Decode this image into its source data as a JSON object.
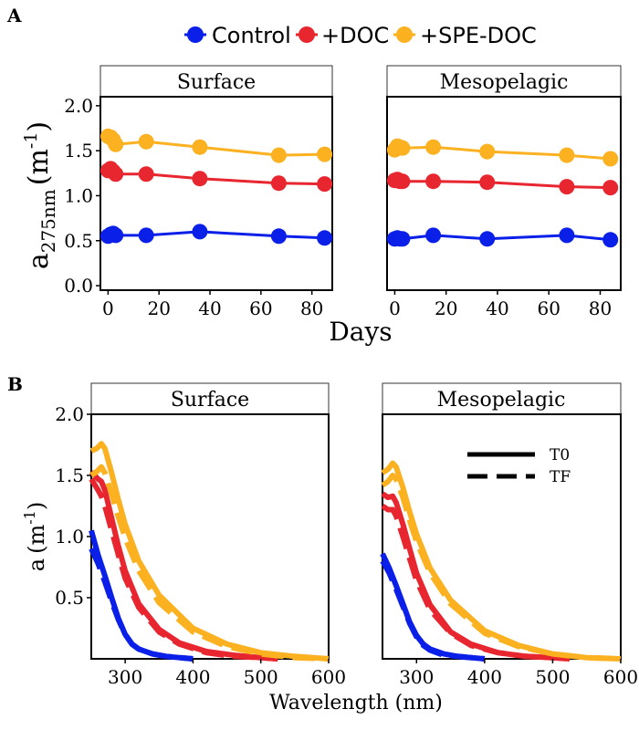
{
  "panel_labels": {
    "a": "A",
    "b": "B"
  },
  "legend": {
    "items": [
      {
        "label": "Control",
        "color": "#0a1fe8"
      },
      {
        "label": "+DOC",
        "color": "#e8262f"
      },
      {
        "label": "+SPE-DOC",
        "color": "#fbb120"
      }
    ]
  },
  "strip_labels": {
    "surface": "Surface",
    "mesopelagic": "Mesopelagic"
  },
  "axis_titles": {
    "a_ylabel_main": "a",
    "a_ylabel_sub": "275nm",
    "a_ylabel_unit_open": "(m",
    "a_ylabel_unit_sup": "-1",
    "a_ylabel_unit_close": ")",
    "a_xlabel": "Days",
    "b_ylabel_main": "a",
    "b_ylabel_unit_open": "(m",
    "b_ylabel_unit_sup": "-1",
    "b_ylabel_unit_close": ")",
    "b_xlabel": "Wavelength (nm)"
  },
  "line_legend": {
    "solid": "T0",
    "dashed": "TF"
  },
  "chart_data": [
    {
      "type": "line",
      "panel": "A",
      "xlabel": "Days",
      "ylabel": "a275nm (m-1)",
      "xlim": [
        -3,
        88
      ],
      "ylim": [
        -0.05,
        2.1
      ],
      "xticks": [
        0,
        20,
        40,
        60,
        80
      ],
      "yticks": [
        0.0,
        0.5,
        1.0,
        1.5,
        2.0
      ],
      "facets": [
        {
          "name": "Surface",
          "series": [
            {
              "name": "Control",
              "x": [
                0,
                1,
                2,
                3,
                15,
                36,
                67,
                85
              ],
              "y": [
                0.55,
                0.57,
                0.58,
                0.56,
                0.56,
                0.6,
                0.55,
                0.53
              ]
            },
            {
              "name": "+DOC",
              "x": [
                0,
                1,
                2,
                3,
                15,
                36,
                67,
                85
              ],
              "y": [
                1.28,
                1.3,
                1.27,
                1.24,
                1.24,
                1.19,
                1.14,
                1.13
              ]
            },
            {
              "name": "+SPE-DOC",
              "x": [
                0,
                1,
                2,
                3,
                15,
                36,
                67,
                85
              ],
              "y": [
                1.66,
                1.65,
                1.62,
                1.57,
                1.6,
                1.54,
                1.45,
                1.46
              ]
            }
          ]
        },
        {
          "name": "Mesopelagic",
          "series": [
            {
              "name": "Control",
              "x": [
                0,
                1,
                2,
                3,
                15,
                36,
                67,
                84
              ],
              "y": [
                0.52,
                0.53,
                0.52,
                0.52,
                0.56,
                0.52,
                0.56,
                0.51
              ]
            },
            {
              "name": "+DOC",
              "x": [
                0,
                1,
                2,
                3,
                15,
                36,
                67,
                84
              ],
              "y": [
                1.17,
                1.18,
                1.16,
                1.16,
                1.16,
                1.15,
                1.1,
                1.09
              ]
            },
            {
              "name": "+SPE-DOC",
              "x": [
                0,
                1,
                2,
                3,
                15,
                36,
                67,
                84
              ],
              "y": [
                1.51,
                1.55,
                1.54,
                1.53,
                1.54,
                1.49,
                1.45,
                1.41
              ]
            }
          ]
        }
      ]
    },
    {
      "type": "line",
      "panel": "B",
      "xlabel": "Wavelength (nm)",
      "ylabel": "a (m-1)",
      "xlim": [
        250,
        600
      ],
      "ylim": [
        0,
        2.0
      ],
      "xticks": [
        300,
        400,
        500,
        600
      ],
      "yticks": [
        0.5,
        1.0,
        1.5,
        2.0
      ],
      "facets": [
        {
          "name": "Surface",
          "series": [
            {
              "name": "Control",
              "line": "T0",
              "x": [
                250,
                260,
                270,
                280,
                290,
                300,
                310,
                320,
                340,
                360,
                380,
                400
              ],
              "y": [
                1.05,
                0.85,
                0.68,
                0.5,
                0.33,
                0.2,
                0.12,
                0.08,
                0.04,
                0.02,
                0.01,
                0.0
              ]
            },
            {
              "name": "Control",
              "line": "TF",
              "x": [
                250,
                260,
                270,
                280,
                290,
                300,
                310,
                320,
                340,
                360,
                380,
                400
              ],
              "y": [
                0.9,
                0.78,
                0.63,
                0.47,
                0.32,
                0.2,
                0.12,
                0.08,
                0.04,
                0.02,
                0.01,
                0.0
              ]
            },
            {
              "name": "+DOC",
              "line": "T0",
              "x": [
                250,
                260,
                265,
                270,
                280,
                290,
                300,
                320,
                350,
                380,
                420,
                460,
                500,
                525
              ],
              "y": [
                1.53,
                1.47,
                1.45,
                1.38,
                1.15,
                0.92,
                0.72,
                0.45,
                0.24,
                0.13,
                0.06,
                0.03,
                0.01,
                0.0
              ]
            },
            {
              "name": "+DOC",
              "line": "TF",
              "x": [
                250,
                260,
                265,
                270,
                280,
                290,
                300,
                320,
                350,
                380,
                420,
                460,
                500,
                525
              ],
              "y": [
                1.47,
                1.38,
                1.33,
                1.25,
                1.05,
                0.85,
                0.66,
                0.42,
                0.22,
                0.12,
                0.05,
                0.02,
                0.01,
                0.0
              ]
            },
            {
              "name": "+SPE-DOC",
              "line": "T0",
              "x": [
                250,
                258,
                265,
                270,
                280,
                290,
                300,
                320,
                350,
                400,
                450,
                500,
                550,
                600
              ],
              "y": [
                1.7,
                1.72,
                1.76,
                1.72,
                1.52,
                1.3,
                1.1,
                0.8,
                0.52,
                0.25,
                0.12,
                0.05,
                0.02,
                0.0
              ]
            },
            {
              "name": "+SPE-DOC",
              "line": "TF",
              "x": [
                250,
                258,
                265,
                270,
                280,
                290,
                300,
                320,
                350,
                400,
                450,
                500,
                550,
                600
              ],
              "y": [
                1.5,
                1.53,
                1.57,
                1.52,
                1.35,
                1.16,
                0.99,
                0.72,
                0.46,
                0.22,
                0.1,
                0.04,
                0.01,
                0.0
              ]
            }
          ]
        },
        {
          "name": "Mesopelagic",
          "series": [
            {
              "name": "Control",
              "line": "T0",
              "x": [
                250,
                260,
                270,
                280,
                290,
                300,
                310,
                320,
                340,
                360,
                380,
                400
              ],
              "y": [
                0.86,
                0.74,
                0.6,
                0.45,
                0.3,
                0.19,
                0.12,
                0.08,
                0.04,
                0.02,
                0.01,
                0.0
              ]
            },
            {
              "name": "Control",
              "line": "TF",
              "x": [
                250,
                260,
                270,
                280,
                290,
                300,
                310,
                320,
                340,
                360,
                380,
                400
              ],
              "y": [
                0.8,
                0.7,
                0.57,
                0.43,
                0.29,
                0.18,
                0.11,
                0.07,
                0.03,
                0.02,
                0.01,
                0.0
              ]
            },
            {
              "name": "+DOC",
              "line": "T0",
              "x": [
                250,
                258,
                265,
                270,
                280,
                290,
                300,
                320,
                350,
                380,
                420,
                460,
                500,
                525
              ],
              "y": [
                1.35,
                1.32,
                1.33,
                1.28,
                1.1,
                0.9,
                0.7,
                0.44,
                0.22,
                0.12,
                0.05,
                0.02,
                0.01,
                0.0
              ]
            },
            {
              "name": "+DOC",
              "line": "TF",
              "x": [
                250,
                258,
                265,
                270,
                280,
                290,
                300,
                320,
                350,
                380,
                420,
                460,
                500,
                525
              ],
              "y": [
                1.25,
                1.22,
                1.22,
                1.17,
                1.0,
                0.82,
                0.64,
                0.4,
                0.21,
                0.11,
                0.05,
                0.02,
                0.01,
                0.0
              ]
            },
            {
              "name": "+SPE-DOC",
              "line": "T0",
              "x": [
                250,
                258,
                265,
                270,
                280,
                290,
                300,
                320,
                350,
                400,
                450,
                500,
                550,
                600
              ],
              "y": [
                1.52,
                1.55,
                1.6,
                1.57,
                1.4,
                1.2,
                1.02,
                0.74,
                0.48,
                0.23,
                0.11,
                0.04,
                0.01,
                0.0
              ]
            },
            {
              "name": "+SPE-DOC",
              "line": "TF",
              "x": [
                250,
                258,
                265,
                270,
                280,
                290,
                300,
                320,
                350,
                400,
                450,
                500,
                550,
                600
              ],
              "y": [
                1.42,
                1.45,
                1.5,
                1.47,
                1.32,
                1.13,
                0.96,
                0.7,
                0.45,
                0.21,
                0.1,
                0.04,
                0.01,
                0.0
              ]
            }
          ]
        }
      ]
    }
  ]
}
